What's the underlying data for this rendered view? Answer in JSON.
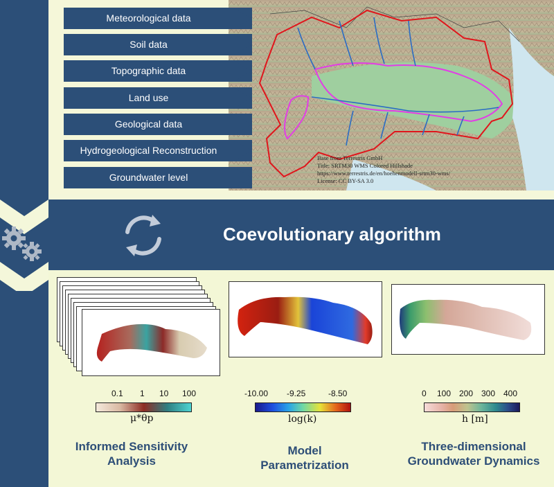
{
  "data_sources": [
    "Meteorological data",
    "Soil data",
    "Topographic data",
    "Land use",
    "Geological data",
    "Hydrogeological Reconstruction",
    "Groundwater level"
  ],
  "map_credit": {
    "line1": "Base from Terrestris GmbH",
    "line2": "Title: SRTM30 WMS Colored Hillshade",
    "line3": "https://www.terrestris.de/en/hoehenmodell-srtm30-wms/",
    "line4": "License: CC BY-SA 3.0"
  },
  "algorithm": {
    "title": "Coevolutionary algorithm",
    "icons": [
      "gears-icon",
      "refresh-cycle-icon"
    ]
  },
  "panels": {
    "sensitivity": {
      "ticks": [
        "0.1",
        "1",
        "10",
        "100"
      ],
      "symbol": "μ*θp",
      "caption_line1": "Informed Sensitivity",
      "caption_line2": "Analysis"
    },
    "parametrization": {
      "ticks": [
        "-10.00",
        "-9.25",
        "-8.50"
      ],
      "symbol": "log(k)",
      "caption_line1": "Model",
      "caption_line2": "Parametrization"
    },
    "dynamics": {
      "ticks": [
        "0",
        "100",
        "200",
        "300",
        "400"
      ],
      "symbol": "h [m]",
      "caption_line1": "Three-dimensional",
      "caption_line2": "Groundwater Dynamics"
    }
  },
  "colors": {
    "navy": "#2c4f78",
    "panel_bg": "#f4f7da",
    "boundary_red": "#e0161c",
    "aquifer_magenta": "#e23de6",
    "river_blue": "#2a6cc4"
  }
}
